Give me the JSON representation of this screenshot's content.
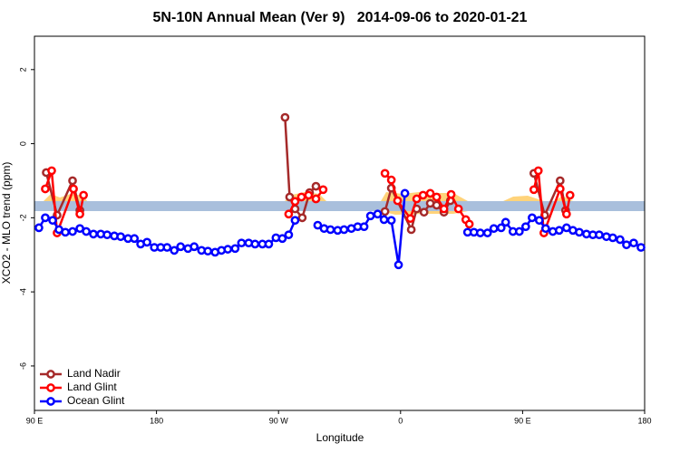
{
  "chart_data": {
    "type": "line",
    "title": "5N-10N Annual Mean (Ver 9)   2014-09-06 to 2020-01-21",
    "x_label": "Longitude",
    "y_label": "XCO2 - MLO trend (ppm)",
    "xlim": [
      90,
      540
    ],
    "xticks": [
      {
        "value": 90,
        "label": "90 E"
      },
      180,
      {
        "value": 270,
        "label": "90 W"
      },
      {
        "value": 360,
        "label": "0"
      },
      {
        "value": 450,
        "label": "90 E"
      },
      {
        "value": 540,
        "label": "180"
      }
    ],
    "ylim": [
      -7.2,
      2.9
    ],
    "yticks": [
      -6,
      -4,
      -2,
      0,
      2
    ],
    "legend": "bottom-left",
    "series": [
      {
        "name": "Land Nadir",
        "color": "#a52a2a",
        "x": [
          98.7,
          106.7,
          118.1,
          123.5,
          200,
          274.8,
          278.2,
          282.2,
          287.5,
          292.9,
          297.6,
          320,
          348.5,
          353.2,
          367.9,
          371.9,
          377.3,
          381.9,
          386.6,
          392.0,
          396.7,
          430,
          458.3,
          466.3,
          477.7,
          481.7
        ],
        "values": [
          -0.78,
          -1.93,
          -1.0,
          -1.8,
          null,
          0.71,
          -1.44,
          -1.76,
          -2.0,
          -1.32,
          -1.15,
          null,
          -1.83,
          -1.2,
          -2.32,
          -1.76,
          -1.85,
          -1.61,
          -1.66,
          -1.85,
          -1.54,
          null,
          -0.8,
          -1.93,
          -1.0,
          -1.8
        ]
      },
      {
        "name": "Land Glint",
        "color": "#ff0000",
        "x": [
          98.0,
          102.7,
          106.7,
          118.8,
          123.5,
          126.2,
          200,
          277.5,
          282.2,
          286.9,
          292.2,
          297.6,
          302.9,
          320,
          348.5,
          353.2,
          357.8,
          367.2,
          371.9,
          376.6,
          381.9,
          386.6,
          392.0,
          397.3,
          402.7,
          408.1,
          410.7,
          430,
          458.3,
          461.6,
          465.7,
          477.7,
          482.4,
          485.0
        ],
        "values": [
          -1.22,
          -0.73,
          -2.41,
          -1.22,
          -1.9,
          -1.39,
          null,
          -1.9,
          -1.56,
          -1.44,
          -1.39,
          -1.49,
          -1.24,
          null,
          -0.8,
          -0.98,
          -1.54,
          -2.02,
          -1.49,
          -1.39,
          -1.34,
          -1.44,
          -1.76,
          -1.37,
          -1.76,
          -2.05,
          -2.17,
          null,
          -1.24,
          -0.73,
          -2.41,
          -1.22,
          -1.9,
          -1.39
        ]
      },
      {
        "name": "Ocean Glint",
        "color": "#0000ff",
        "x": [
          93.3,
          98.0,
          103.4,
          108.1,
          112.8,
          118.1,
          123.5,
          128.2,
          133.5,
          138.9,
          143.6,
          148.9,
          153.6,
          159.0,
          163.7,
          168.3,
          173.0,
          178.4,
          183.1,
          187.8,
          193.1,
          197.8,
          203.2,
          207.8,
          213.2,
          217.9,
          223.2,
          227.9,
          232.6,
          238.0,
          242.7,
          248.0,
          252.7,
          258.1,
          262.8,
          268.1,
          272.8,
          277.5,
          282.2,
          290,
          298.9,
          303.6,
          308.3,
          313.6,
          318.3,
          323.7,
          328.4,
          333.1,
          337.8,
          343.1,
          347.8,
          353.2,
          358.5,
          363.2,
          390,
          409.4,
          414.1,
          418.8,
          424.1,
          428.8,
          434.2,
          437.5,
          442.9,
          447.6,
          452.3,
          457.0,
          462.3,
          467.0,
          472.3,
          477.0,
          482.4,
          487.1,
          491.8,
          497.1,
          501.8,
          506.5,
          511.8,
          516.5,
          521.9,
          526.6,
          531.9,
          537.3
        ],
        "values": [
          -2.27,
          -2.0,
          -2.07,
          -2.32,
          -2.39,
          -2.37,
          -2.29,
          -2.37,
          -2.44,
          -2.44,
          -2.46,
          -2.49,
          -2.51,
          -2.56,
          -2.56,
          -2.71,
          -2.66,
          -2.8,
          -2.8,
          -2.8,
          -2.88,
          -2.78,
          -2.83,
          -2.78,
          -2.88,
          -2.9,
          -2.93,
          -2.88,
          -2.85,
          -2.83,
          -2.68,
          -2.68,
          -2.71,
          -2.71,
          -2.71,
          -2.54,
          -2.56,
          -2.46,
          -2.07,
          null,
          -2.2,
          -2.29,
          -2.32,
          -2.34,
          -2.32,
          -2.29,
          -2.24,
          -2.24,
          -1.95,
          -1.9,
          -2.05,
          -2.07,
          -3.27,
          -1.34,
          null,
          -2.39,
          -2.39,
          -2.41,
          -2.41,
          -2.29,
          -2.27,
          -2.12,
          -2.37,
          -2.37,
          -2.24,
          -2.0,
          -2.07,
          -2.29,
          -2.37,
          -2.34,
          -2.27,
          -2.34,
          -2.39,
          -2.44,
          -2.46,
          -2.46,
          -2.51,
          -2.54,
          -2.59,
          -2.73,
          -2.68,
          -2.8
        ]
      }
    ]
  }
}
